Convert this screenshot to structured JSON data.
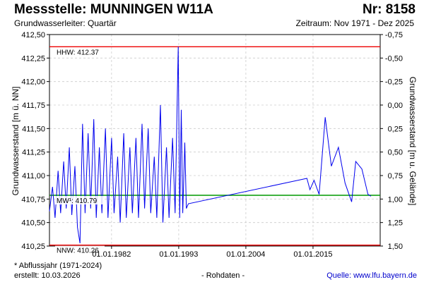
{
  "header": {
    "title": "Messstelle: MUNNINGEN W11A",
    "nr": "Nr: 8158",
    "aquifer": "Grundwasserleiter: Quartär",
    "period": "Zeitraum: Nov 1971 - Dez 2025"
  },
  "footer": {
    "footnote": "* Abflussjahr (1971-2024)",
    "created": "erstellt:  10.03.2026",
    "raw": "- Rohdaten -",
    "source": "Quelle:  www.lfu.bayern.de"
  },
  "colors": {
    "series": "#0000ee",
    "hhw": "#ee0000",
    "nnw": "#ee0000",
    "mw": "#009900",
    "grid": "#cccccc"
  },
  "chart_data": {
    "type": "line",
    "ylabel": "Grundwasserstand [m ü. NN]",
    "y2label": "Grundwasserstand [m u. Gelände]",
    "xlim": [
      "1971-11-01",
      "2026-01-01"
    ],
    "ylim": [
      410.25,
      412.5
    ],
    "y2lim": [
      1.5,
      -0.75
    ],
    "y_ticks": [
      "410,25",
      "410,50",
      "410,75",
      "411,00",
      "411,25",
      "411,50",
      "411,75",
      "412,00",
      "412,25",
      "412,50"
    ],
    "y2_ticks": [
      "1,50",
      "1,25",
      "1,00",
      "0,75",
      "0,50",
      "0,25",
      "0,00",
      "-0,25",
      "-0,50",
      "-0,75"
    ],
    "x_ticks": [
      {
        "date": "1982-01-01",
        "label": "01.01.1982"
      },
      {
        "date": "1993-01-01",
        "label": "01.01.1993"
      },
      {
        "date": "2004-01-01",
        "label": "01.01.2004"
      },
      {
        "date": "2015-01-01",
        "label": "01.01.2015"
      }
    ],
    "grid": true,
    "reference_lines": [
      {
        "key": "hhw",
        "label": "HHW: 412.37",
        "value": 412.37
      },
      {
        "key": "mw",
        "label": "MW¹: 410.79",
        "value": 410.79
      },
      {
        "key": "nnw",
        "label": "NNW: 410.26",
        "value": 410.26
      }
    ],
    "series": [
      {
        "points": [
          [
            "1971-11-01",
            410.62
          ],
          [
            "1972-05-01",
            410.88
          ],
          [
            "1972-10-01",
            410.55
          ],
          [
            "1973-04-01",
            411.05
          ],
          [
            "1973-09-01",
            410.6
          ],
          [
            "1974-03-01",
            411.15
          ],
          [
            "1974-08-01",
            410.65
          ],
          [
            "1975-02-01",
            411.3
          ],
          [
            "1975-07-01",
            410.58
          ],
          [
            "1976-01-01",
            411.1
          ],
          [
            "1976-06-01",
            410.45
          ],
          [
            "1976-11-01",
            410.28
          ],
          [
            "1977-04-01",
            411.55
          ],
          [
            "1977-09-01",
            410.6
          ],
          [
            "1978-03-01",
            411.45
          ],
          [
            "1978-08-01",
            410.65
          ],
          [
            "1979-02-01",
            411.6
          ],
          [
            "1979-07-01",
            410.55
          ],
          [
            "1980-01-01",
            411.3
          ],
          [
            "1980-06-01",
            410.6
          ],
          [
            "1981-01-01",
            411.5
          ],
          [
            "1981-06-01",
            410.55
          ],
          [
            "1982-01-01",
            411.4
          ],
          [
            "1982-06-01",
            410.6
          ],
          [
            "1983-01-01",
            411.2
          ],
          [
            "1983-06-01",
            410.5
          ],
          [
            "1984-01-01",
            411.45
          ],
          [
            "1984-06-01",
            410.55
          ],
          [
            "1985-01-01",
            411.3
          ],
          [
            "1985-06-01",
            410.6
          ],
          [
            "1986-01-01",
            411.4
          ],
          [
            "1986-06-01",
            410.55
          ],
          [
            "1987-01-01",
            411.55
          ],
          [
            "1987-06-01",
            410.65
          ],
          [
            "1988-01-01",
            411.5
          ],
          [
            "1988-06-01",
            410.6
          ],
          [
            "1989-01-01",
            411.2
          ],
          [
            "1989-06-01",
            410.55
          ],
          [
            "1990-01-01",
            411.75
          ],
          [
            "1990-06-01",
            410.5
          ],
          [
            "1991-01-01",
            411.3
          ],
          [
            "1991-06-01",
            410.55
          ],
          [
            "1992-01-01",
            411.4
          ],
          [
            "1992-06-01",
            410.6
          ],
          [
            "1992-12-01",
            412.37
          ],
          [
            "1993-03-01",
            410.55
          ],
          [
            "1993-06-01",
            411.7
          ],
          [
            "1993-09-01",
            410.6
          ],
          [
            "1994-01-01",
            411.35
          ],
          [
            "1994-04-01",
            410.65
          ],
          [
            "1994-08-01",
            410.7
          ],
          [
            "2014-01-01",
            410.97
          ],
          [
            "2014-07-01",
            410.85
          ],
          [
            "2015-03-01",
            410.95
          ],
          [
            "2016-01-01",
            410.8
          ],
          [
            "2017-01-01",
            411.62
          ],
          [
            "2018-01-01",
            411.1
          ],
          [
            "2019-03-01",
            411.3
          ],
          [
            "2020-04-01",
            410.92
          ],
          [
            "2021-05-01",
            410.72
          ],
          [
            "2022-01-01",
            411.15
          ],
          [
            "2023-01-01",
            411.07
          ],
          [
            "2024-01-01",
            410.8
          ],
          [
            "2024-07-01",
            410.78
          ]
        ]
      }
    ]
  }
}
